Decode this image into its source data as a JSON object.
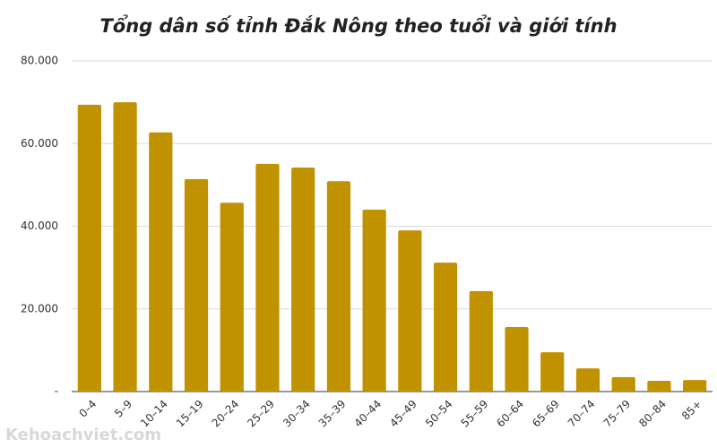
{
  "chart_data": {
    "type": "bar",
    "title": "Tổng dân số tỉnh Đắk Nông theo tuổi và giới tính",
    "categories": [
      "0–4",
      "5–9",
      "10–14",
      "15–19",
      "20–24",
      "25–29",
      "30–34",
      "35–39",
      "40–44",
      "45–49",
      "50–54",
      "55–59",
      "60–64",
      "65–69",
      "70–74",
      "75–79",
      "80–84",
      "85+"
    ],
    "values": [
      69400,
      70000,
      62700,
      51400,
      45700,
      55100,
      54200,
      50900,
      44000,
      39000,
      31200,
      24300,
      15600,
      9500,
      5600,
      3500,
      2600,
      2800
    ],
    "color": "#c19200",
    "ylim": [
      0,
      80000
    ],
    "yticks": [
      {
        "value": 0,
        "label": "-"
      },
      {
        "value": 20000,
        "label": "20.000"
      },
      {
        "value": 40000,
        "label": "40.000"
      },
      {
        "value": 60000,
        "label": "60.000"
      },
      {
        "value": 80000,
        "label": "80.000"
      }
    ],
    "grid": true,
    "watermark": "Kehoachviet.com"
  }
}
